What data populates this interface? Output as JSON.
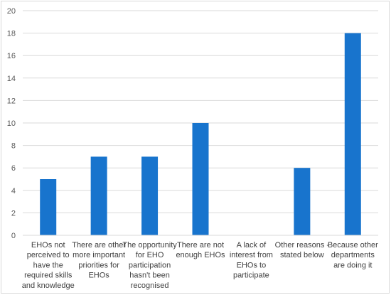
{
  "chart_data": {
    "type": "bar",
    "categories": [
      "EHOs not perceived to have the required skills and knowledge",
      "There are other more important priorities for EHOs",
      "The opportunity for EHO participation hasn't been recognised",
      "There are not enough EHOs",
      "A lack of interest from EHOs to participate",
      "Other reasons - stated below",
      "Because other departments are doing it"
    ],
    "category_lines": [
      [
        "EHOs not",
        "perceived to",
        "have the",
        "required skills",
        "and knowledge"
      ],
      [
        "There are other",
        "more important",
        "priorities for",
        "EHOs"
      ],
      [
        "The opportunity",
        "for EHO",
        "participation",
        "hasn't been",
        "recognised"
      ],
      [
        "There are not",
        "enough EHOs"
      ],
      [
        "A lack of",
        "interest from",
        "EHOs to",
        "participate"
      ],
      [
        "Other reasons -",
        "stated below"
      ],
      [
        "Because other",
        "departments",
        "are doing it"
      ]
    ],
    "values": [
      5,
      7,
      7,
      10,
      0,
      6,
      18
    ],
    "ylim": [
      0,
      20
    ],
    "yticks": [
      "0",
      "2",
      "4",
      "6",
      "8",
      "10",
      "12",
      "14",
      "16",
      "18",
      "20"
    ],
    "grid": true,
    "bar_color": "#1874CD",
    "grid_color": "#d9d9d9",
    "title": "",
    "xlabel": "",
    "ylabel": ""
  }
}
